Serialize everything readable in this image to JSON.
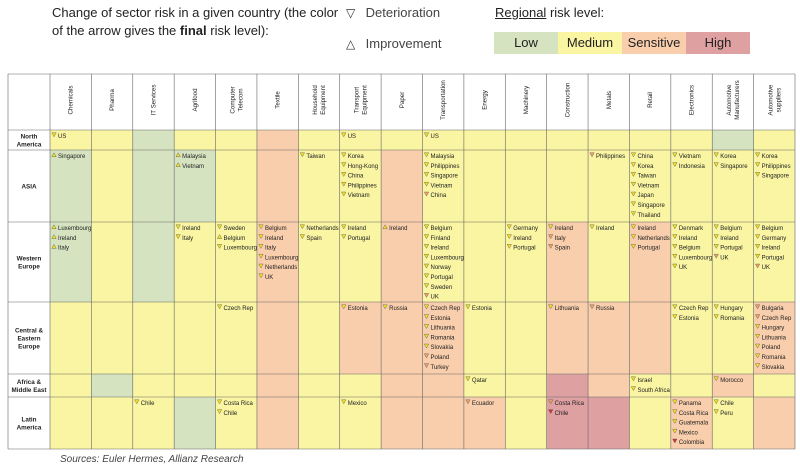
{
  "header": {
    "intro_prefix": "Change of sector risk in a given country (the color of the arrow gives the ",
    "intro_bold": "final",
    "intro_suffix": " risk level):",
    "deterioration_label": "Deterioration",
    "improvement_label": "Improvement",
    "regional_word": "Regional",
    "risk_level_word": " risk level:",
    "levels": [
      {
        "label": "Low",
        "color": "#d5e3c0"
      },
      {
        "label": "Medium",
        "color": "#f9f5a2"
      },
      {
        "label": "Sensitive",
        "color": "#f9ceac"
      },
      {
        "label": "High",
        "color": "#dfa0a2"
      }
    ]
  },
  "chart_data": {
    "type": "table",
    "columns": [
      "Chemicals",
      "Pharma",
      "IT Services",
      "Agrifood",
      "Computer Telecom",
      "Textile",
      "Household Equipment",
      "Transport Equipment",
      "Paper",
      "Transportation",
      "Energy",
      "Machinery",
      "Construction",
      "Metals",
      "Retail",
      "Electronics",
      "Automotive Manufacturers",
      "Automotive suppliers"
    ],
    "regions": [
      "North America",
      "ASIA",
      "Western Europe",
      "Central & Eastern Europe",
      "Africa & Middle East",
      "Latin America"
    ],
    "risk_levels": {
      "North America": [
        "Medium",
        "Medium",
        "Low",
        "Medium",
        "Medium",
        "Sensitive",
        "Medium",
        "Medium",
        "Medium",
        "Medium",
        "Medium",
        "Medium",
        "Medium",
        "Medium",
        "Medium",
        "Medium",
        "Low",
        "Medium"
      ],
      "ASIA": [
        "Low",
        "Medium",
        "Low",
        "Low",
        "Medium",
        "Sensitive",
        "Medium",
        "Medium",
        "Sensitive",
        "Medium",
        "Medium",
        "Medium",
        "Medium",
        "Medium",
        "Medium",
        "Medium",
        "Medium",
        "Medium"
      ],
      "Western Europe": [
        "Low",
        "Medium",
        "Low",
        "Medium",
        "Medium",
        "Sensitive",
        "Medium",
        "Medium",
        "Sensitive",
        "Medium",
        "Medium",
        "Medium",
        "Sensitive",
        "Medium",
        "Sensitive",
        "Medium",
        "Medium",
        "Medium"
      ],
      "Central & Eastern Europe": [
        "Medium",
        "Medium",
        "Medium",
        "Medium",
        "Medium",
        "Sensitive",
        "Medium",
        "Sensitive",
        "Sensitive",
        "Sensitive",
        "Medium",
        "Medium",
        "Sensitive",
        "Sensitive",
        "Sensitive",
        "Medium",
        "Medium",
        "Sensitive"
      ],
      "Africa & Middle East": [
        "Medium",
        "Low",
        "Medium",
        "Medium",
        "Medium",
        "Sensitive",
        "Medium",
        "Medium",
        "Sensitive",
        "Sensitive",
        "Medium",
        "Medium",
        "High",
        "Sensitive",
        "Medium",
        "Medium",
        "Sensitive",
        "Medium"
      ],
      "Latin America": [
        "Medium",
        "Medium",
        "Medium",
        "Low",
        "Medium",
        "Sensitive",
        "Medium",
        "Medium",
        "Sensitive",
        "Sensitive",
        "Sensitive",
        "Medium",
        "High",
        "High",
        "Medium",
        "Sensitive",
        "Medium",
        "Sensitive"
      ]
    },
    "changes": {
      "North America": {
        "Chemicals": [
          [
            "US",
            "down",
            "Medium"
          ]
        ],
        "Transport Equipment": [
          [
            "US",
            "down",
            "Medium"
          ]
        ],
        "Transportation": [
          [
            "US",
            "down",
            "Medium"
          ]
        ]
      },
      "ASIA": {
        "Chemicals": [
          [
            "Singapore",
            "up",
            "Medium"
          ]
        ],
        "Agrifood": [
          [
            "Malaysia",
            "up",
            "Medium"
          ],
          [
            "Vietnam",
            "up",
            "Medium"
          ]
        ],
        "Household Equipment": [
          [
            "Taiwan",
            "down",
            "Medium"
          ]
        ],
        "Transport Equipment": [
          [
            "Korea",
            "down",
            "Medium"
          ],
          [
            "Hong-Kong",
            "down",
            "Medium"
          ],
          [
            "China",
            "down",
            "Medium"
          ],
          [
            "Philippines",
            "down",
            "Medium"
          ],
          [
            "Vietnam",
            "down",
            "Medium"
          ]
        ],
        "Transportation": [
          [
            "Malaysia",
            "down",
            "Medium"
          ],
          [
            "Philippines",
            "down",
            "Medium"
          ],
          [
            "Singapore",
            "down",
            "Medium"
          ],
          [
            "Vietnam",
            "down",
            "Medium"
          ],
          [
            "China",
            "down",
            "Sensitive"
          ]
        ],
        "Metals": [
          [
            "Philippines",
            "down",
            "Sensitive"
          ]
        ],
        "Retail": [
          [
            "China",
            "down",
            "Medium"
          ],
          [
            "Korea",
            "down",
            "Medium"
          ],
          [
            "Taiwan",
            "down",
            "Medium"
          ],
          [
            "Vietnam",
            "down",
            "Medium"
          ],
          [
            "Japan",
            "down",
            "Medium"
          ],
          [
            "Singapore",
            "down",
            "Medium"
          ],
          [
            "Thailand",
            "down",
            "Medium"
          ]
        ],
        "Electronics": [
          [
            "Vietnam",
            "down",
            "Medium"
          ],
          [
            "Indonesia",
            "down",
            "Medium"
          ]
        ],
        "Automotive Manufacturers": [
          [
            "Korea",
            "down",
            "Medium"
          ],
          [
            "Singapore",
            "down",
            "Medium"
          ]
        ],
        "Automotive suppliers": [
          [
            "Korea",
            "down",
            "Medium"
          ],
          [
            "Philippines",
            "down",
            "Medium"
          ],
          [
            "Singapore",
            "down",
            "Medium"
          ]
        ]
      },
      "Western Europe": {
        "Chemicals": [
          [
            "Luxembourg",
            "up",
            "Medium"
          ],
          [
            "Ireland",
            "up",
            "Medium"
          ],
          [
            "Italy",
            "up",
            "Medium"
          ]
        ],
        "Agrifood": [
          [
            "Ireland",
            "down",
            "Medium"
          ],
          [
            "Italy",
            "down",
            "Medium"
          ]
        ],
        "Computer Telecom": [
          [
            "Sweden",
            "down",
            "Medium"
          ],
          [
            "Belgium",
            "up",
            "Medium"
          ],
          [
            "Luxembourg",
            "down",
            "Medium"
          ]
        ],
        "Textile": [
          [
            "Belgium",
            "down",
            "Medium"
          ],
          [
            "Ireland",
            "down",
            "Medium"
          ],
          [
            "Italy",
            "down",
            "Medium"
          ],
          [
            "Luxembourg",
            "down",
            "Medium"
          ],
          [
            "Netherlands",
            "down",
            "Medium"
          ],
          [
            "UK",
            "down",
            "Medium"
          ]
        ],
        "Household Equipment": [
          [
            "Netherlands",
            "down",
            "Medium"
          ],
          [
            "Spain",
            "down",
            "Medium"
          ]
        ],
        "Transport Equipment": [
          [
            "Ireland",
            "down",
            "Medium"
          ],
          [
            "Portugal",
            "down",
            "Medium"
          ]
        ],
        "Paper": [
          [
            "Ireland",
            "up",
            "Medium"
          ]
        ],
        "Transportation": [
          [
            "Belgium",
            "down",
            "Medium"
          ],
          [
            "Finland",
            "down",
            "Medium"
          ],
          [
            "Ireland",
            "down",
            "Medium"
          ],
          [
            "Luxembourg",
            "down",
            "Medium"
          ],
          [
            "Norway",
            "down",
            "Medium"
          ],
          [
            "Portugal",
            "down",
            "Medium"
          ],
          [
            "Sweden",
            "down",
            "Medium"
          ],
          [
            "UK",
            "down",
            "Sensitive"
          ]
        ],
        "Machinery": [
          [
            "Germany",
            "down",
            "Medium"
          ],
          [
            "Ireland",
            "down",
            "Medium"
          ],
          [
            "Portugal",
            "down",
            "Medium"
          ]
        ],
        "Construction": [
          [
            "Ireland",
            "down",
            "Medium"
          ],
          [
            "Italy",
            "down",
            "Sensitive"
          ],
          [
            "Spain",
            "down",
            "Sensitive"
          ]
        ],
        "Metals": [
          [
            "Ireland",
            "down",
            "Medium"
          ]
        ],
        "Retail": [
          [
            "Ireland",
            "down",
            "Medium"
          ],
          [
            "Netherlands",
            "down",
            "Medium"
          ],
          [
            "Portugal",
            "down",
            "Medium"
          ]
        ],
        "Electronics": [
          [
            "Denmark",
            "down",
            "Medium"
          ],
          [
            "Ireland",
            "down",
            "Medium"
          ],
          [
            "Belgium",
            "down",
            "Medium"
          ],
          [
            "Luxembourg",
            "down",
            "Medium"
          ],
          [
            "UK",
            "down",
            "Medium"
          ]
        ],
        "Automotive Manufacturers": [
          [
            "Belgium",
            "down",
            "Medium"
          ],
          [
            "Ireland",
            "down",
            "Medium"
          ],
          [
            "Portugal",
            "down",
            "Medium"
          ],
          [
            "UK",
            "down",
            "Sensitive"
          ]
        ],
        "Automotive suppliers": [
          [
            "Belgium",
            "down",
            "Medium"
          ],
          [
            "Germany",
            "down",
            "Medium"
          ],
          [
            "Ireland",
            "down",
            "Medium"
          ],
          [
            "Portugal",
            "down",
            "Medium"
          ],
          [
            "UK",
            "down",
            "Sensitive"
          ]
        ]
      },
      "Central & Eastern Europe": {
        "Computer Telecom": [
          [
            "Czech Rep",
            "down",
            "Medium"
          ]
        ],
        "Transport Equipment": [
          [
            "Estonia",
            "down",
            "Medium"
          ]
        ],
        "Paper": [
          [
            "Russia",
            "down",
            "Medium"
          ]
        ],
        "Transportation": [
          [
            "Czech Rep",
            "down",
            "Medium"
          ],
          [
            "Estonia",
            "down",
            "Medium"
          ],
          [
            "Lithuania",
            "down",
            "Medium"
          ],
          [
            "Romania",
            "down",
            "Medium"
          ],
          [
            "Slovakia",
            "down",
            "Medium"
          ],
          [
            "Poland",
            "down",
            "Sensitive"
          ],
          [
            "Turkey",
            "down",
            "Sensitive"
          ]
        ],
        "Energy": [
          [
            "Estonia",
            "down",
            "Medium"
          ]
        ],
        "Construction": [
          [
            "Lithuania",
            "down",
            "Medium"
          ]
        ],
        "Metals": [
          [
            "Russia",
            "down",
            "Sensitive"
          ]
        ],
        "Electronics": [
          [
            "Czech Rep",
            "down",
            "Medium"
          ],
          [
            "Estonia",
            "down",
            "Medium"
          ]
        ],
        "Automotive Manufacturers": [
          [
            "Hungary",
            "down",
            "Medium"
          ],
          [
            "Romania",
            "down",
            "Medium"
          ]
        ],
        "Automotive suppliers": [
          [
            "Bulgaria",
            "down",
            "Sensitive"
          ],
          [
            "Czech Rep",
            "down",
            "Sensitive"
          ],
          [
            "Hungary",
            "down",
            "Medium"
          ],
          [
            "Lithuania",
            "down",
            "Medium"
          ],
          [
            "Poland",
            "down",
            "Medium"
          ],
          [
            "Romania",
            "down",
            "Medium"
          ],
          [
            "Slovakia",
            "down",
            "Medium"
          ]
        ]
      },
      "Africa & Middle East": {
        "Energy": [
          [
            "Qatar",
            "down",
            "Medium"
          ]
        ],
        "Retail": [
          [
            "Israel",
            "down",
            "Medium"
          ],
          [
            "South Africa",
            "down",
            "Medium"
          ]
        ],
        "Automotive Manufacturers": [
          [
            "Morocco",
            "down",
            "Medium"
          ]
        ]
      },
      "Latin America": {
        "IT Services": [
          [
            "Chile",
            "down",
            "Medium"
          ]
        ],
        "Computer Telecom": [
          [
            "Costa Rica",
            "down",
            "Medium"
          ],
          [
            "Chile",
            "down",
            "Medium"
          ]
        ],
        "Transport Equipment": [
          [
            "Mexico",
            "down",
            "Medium"
          ]
        ],
        "Energy": [
          [
            "Ecuador",
            "down",
            "Sensitive"
          ]
        ],
        "Construction": [
          [
            "Costa Rica",
            "down",
            "Sensitive"
          ],
          [
            "Chile",
            "down",
            "High"
          ]
        ],
        "Electronics": [
          [
            "Panama",
            "down",
            "Medium"
          ],
          [
            "Costa Rica",
            "down",
            "Medium"
          ],
          [
            "Guatemala",
            "down",
            "Medium"
          ],
          [
            "Mexico",
            "down",
            "Medium"
          ],
          [
            "Colombia",
            "down",
            "High"
          ]
        ],
        "Automotive Manufacturers": [
          [
            "Chile",
            "down",
            "Medium"
          ],
          [
            "Peru",
            "down",
            "Medium"
          ]
        ]
      }
    }
  },
  "footer": {
    "source": "Sources: Euler Hermes, Allianz Research"
  }
}
